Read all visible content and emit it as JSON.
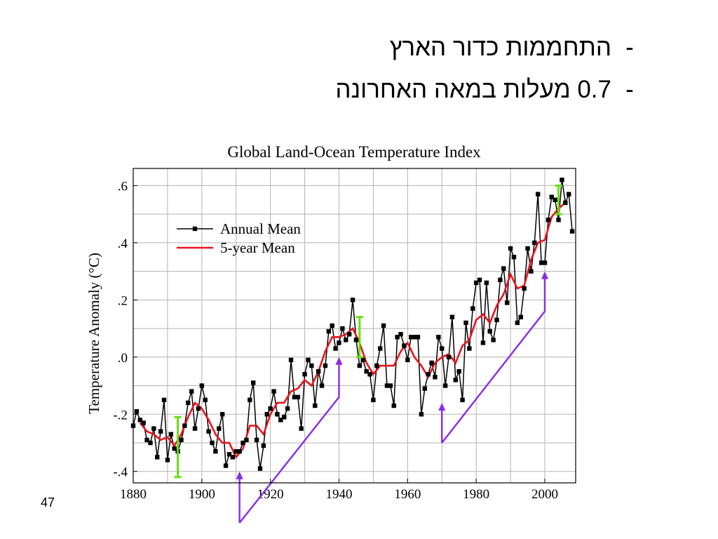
{
  "slide": {
    "bullets": [
      {
        "marker": "-",
        "text": "התחממות כדור הארץ"
      },
      {
        "marker": "-",
        "text": "0.7 מעלות במאה האחרונה"
      }
    ],
    "page_number": "47"
  },
  "colors": {
    "annual": "#000000",
    "five_year": "#e8141d",
    "error_bar": "#66e010",
    "arrow": "#8a2be2",
    "grid": "#b3b3b3"
  },
  "chart_data": {
    "type": "line",
    "title": "Global Land-Ocean Temperature Index",
    "xlabel": "",
    "ylabel": "Temperature Anomaly (°C)",
    "xlim": [
      1880,
      2009
    ],
    "ylim": [
      -0.44,
      0.66
    ],
    "x_ticks": [
      1880,
      1900,
      1920,
      1940,
      1960,
      1980,
      2000
    ],
    "y_ticks": [
      -0.4,
      -0.2,
      0.0,
      0.2,
      0.4,
      0.6
    ],
    "y_tick_labels": [
      "-.4",
      "-.2",
      ".0",
      ".2",
      ".4",
      ".6"
    ],
    "grid": true,
    "legend_position": "top-left",
    "series": [
      {
        "name": "Annual Mean",
        "marker": "square",
        "x": [
          1880,
          1881,
          1882,
          1883,
          1884,
          1885,
          1886,
          1887,
          1888,
          1889,
          1890,
          1891,
          1892,
          1893,
          1894,
          1895,
          1896,
          1897,
          1898,
          1899,
          1900,
          1901,
          1902,
          1903,
          1904,
          1905,
          1906,
          1907,
          1908,
          1909,
          1910,
          1911,
          1912,
          1913,
          1914,
          1915,
          1916,
          1917,
          1918,
          1919,
          1920,
          1921,
          1922,
          1923,
          1924,
          1925,
          1926,
          1927,
          1928,
          1929,
          1930,
          1931,
          1932,
          1933,
          1934,
          1935,
          1936,
          1937,
          1938,
          1939,
          1940,
          1941,
          1942,
          1943,
          1944,
          1945,
          1946,
          1947,
          1948,
          1949,
          1950,
          1951,
          1952,
          1953,
          1954,
          1955,
          1956,
          1957,
          1958,
          1959,
          1960,
          1961,
          1962,
          1963,
          1964,
          1965,
          1966,
          1967,
          1968,
          1969,
          1970,
          1971,
          1972,
          1973,
          1974,
          1975,
          1976,
          1977,
          1978,
          1979,
          1980,
          1981,
          1982,
          1983,
          1984,
          1985,
          1986,
          1987,
          1988,
          1989,
          1990,
          1991,
          1992,
          1993,
          1994,
          1995,
          1996,
          1997,
          1998,
          1999,
          2000,
          2001,
          2002,
          2003,
          2004,
          2005,
          2006,
          2007,
          2008
        ],
        "y": [
          -0.24,
          -0.19,
          -0.22,
          -0.23,
          -0.29,
          -0.3,
          -0.25,
          -0.35,
          -0.26,
          -0.15,
          -0.36,
          -0.27,
          -0.32,
          -0.33,
          -0.29,
          -0.24,
          -0.16,
          -0.12,
          -0.25,
          -0.18,
          -0.1,
          -0.15,
          -0.26,
          -0.3,
          -0.33,
          -0.25,
          -0.2,
          -0.38,
          -0.34,
          -0.35,
          -0.33,
          -0.33,
          -0.3,
          -0.29,
          -0.15,
          -0.09,
          -0.29,
          -0.39,
          -0.31,
          -0.2,
          -0.18,
          -0.12,
          -0.2,
          -0.22,
          -0.21,
          -0.18,
          -0.01,
          -0.14,
          -0.14,
          -0.25,
          -0.06,
          -0.01,
          -0.03,
          -0.17,
          -0.05,
          -0.1,
          -0.03,
          0.09,
          0.11,
          0.03,
          0.05,
          0.1,
          0.06,
          0.08,
          0.2,
          0.06,
          -0.03,
          -0.01,
          -0.05,
          -0.06,
          -0.15,
          -0.03,
          0.03,
          0.11,
          -0.1,
          -0.1,
          -0.17,
          0.07,
          0.08,
          0.04,
          -0.01,
          0.07,
          0.07,
          0.07,
          -0.2,
          -0.11,
          -0.06,
          -0.02,
          -0.07,
          0.07,
          0.03,
          -0.1,
          0.0,
          0.14,
          -0.08,
          -0.05,
          -0.15,
          0.12,
          0.03,
          0.17,
          0.26,
          0.27,
          0.05,
          0.26,
          0.09,
          0.06,
          0.13,
          0.27,
          0.31,
          0.19,
          0.38,
          0.35,
          0.12,
          0.14,
          0.24,
          0.38,
          0.3,
          0.4,
          0.57,
          0.33,
          0.33,
          0.48,
          0.56,
          0.55,
          0.48,
          0.62,
          0.54,
          0.57,
          0.44
        ]
      },
      {
        "name": "5-year Mean",
        "x": [
          1882,
          1884,
          1886,
          1888,
          1890,
          1892,
          1894,
          1896,
          1898,
          1900,
          1902,
          1904,
          1906,
          1908,
          1910,
          1912,
          1914,
          1916,
          1918,
          1920,
          1922,
          1924,
          1926,
          1928,
          1930,
          1932,
          1934,
          1936,
          1938,
          1940,
          1942,
          1944,
          1946,
          1948,
          1950,
          1952,
          1954,
          1956,
          1958,
          1960,
          1962,
          1964,
          1966,
          1968,
          1970,
          1972,
          1974,
          1976,
          1978,
          1980,
          1982,
          1984,
          1986,
          1988,
          1990,
          1992,
          1994,
          1996,
          1998,
          2000,
          2002,
          2004,
          2006
        ],
        "y": [
          -0.23,
          -0.26,
          -0.27,
          -0.29,
          -0.28,
          -0.31,
          -0.27,
          -0.21,
          -0.16,
          -0.18,
          -0.22,
          -0.27,
          -0.3,
          -0.3,
          -0.35,
          -0.32,
          -0.24,
          -0.24,
          -0.27,
          -0.2,
          -0.16,
          -0.16,
          -0.12,
          -0.11,
          -0.08,
          -0.1,
          -0.05,
          0.02,
          0.07,
          0.07,
          0.08,
          0.1,
          0.05,
          -0.02,
          -0.06,
          -0.03,
          -0.03,
          -0.03,
          0.02,
          0.05,
          0.0,
          -0.03,
          -0.07,
          -0.02,
          0.0,
          0.01,
          -0.02,
          0.04,
          0.06,
          0.13,
          0.15,
          0.12,
          0.18,
          0.22,
          0.29,
          0.24,
          0.25,
          0.34,
          0.4,
          0.41,
          0.49,
          0.52,
          0.54
        ]
      }
    ],
    "error_bars": [
      {
        "x": 1893,
        "y_low": -0.42,
        "y_high": -0.21
      },
      {
        "x": 1946,
        "y_low": 0.0,
        "y_high": 0.14
      },
      {
        "x": 2004,
        "y_low": 0.5,
        "y_high": 0.6
      }
    ],
    "trend_arrows": [
      {
        "from": {
          "x": 1911,
          "y": -0.58
        },
        "corner": {
          "x": 1940,
          "y": -0.14
        },
        "tip": {
          "x": 1940,
          "y": 0.0
        }
      },
      {
        "from": {
          "x": 1911,
          "y": -0.58
        },
        "corner": {
          "x": 1911,
          "y": -0.58
        },
        "tip": {
          "x": 1911,
          "y": -0.4
        }
      },
      {
        "from": {
          "x": 1970,
          "y": -0.3
        },
        "corner": {
          "x": 2000,
          "y": 0.16
        },
        "tip": {
          "x": 2000,
          "y": 0.3
        }
      },
      {
        "from": {
          "x": 1970,
          "y": -0.3
        },
        "corner": {
          "x": 1970,
          "y": -0.3
        },
        "tip": {
          "x": 1970,
          "y": -0.16
        }
      }
    ]
  }
}
